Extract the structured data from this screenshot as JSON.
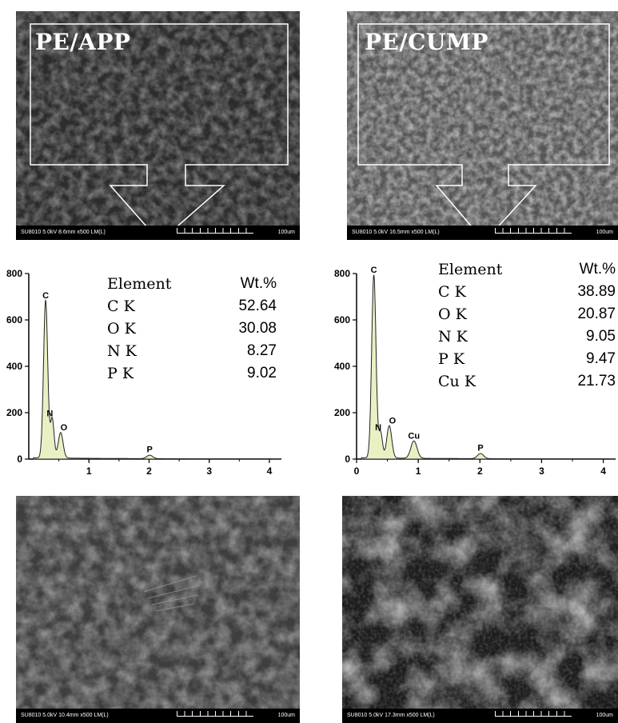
{
  "chart_data": [
    {
      "type": "line",
      "panel": "PE/APP",
      "x_ticks": [
        "1",
        "2",
        "3",
        "4"
      ],
      "y_ticks": [
        "0",
        "200",
        "400",
        "600",
        "800"
      ],
      "xlim": [
        0,
        4.2
      ],
      "ylim": [
        0,
        800
      ],
      "peaks": [
        {
          "label": "C",
          "x": 0.28,
          "y": 680
        },
        {
          "label": "N",
          "x": 0.39,
          "y": 170
        },
        {
          "label": "O",
          "x": 0.53,
          "y": 110
        },
        {
          "label": "P",
          "x": 2.01,
          "y": 15
        }
      ],
      "table": {
        "header": [
          "Element",
          "Wt.%"
        ],
        "rows": [
          [
            "C K",
            "52.64"
          ],
          [
            "O K",
            "30.08"
          ],
          [
            "N K",
            "8.27"
          ],
          [
            "P K",
            "9.02"
          ]
        ]
      }
    },
    {
      "type": "line",
      "panel": "PE/CUMP",
      "x_ticks": [
        "0",
        "1",
        "2",
        "3",
        "4"
      ],
      "y_ticks": [
        "0",
        "200",
        "400",
        "600",
        "800"
      ],
      "xlim": [
        0,
        4.2
      ],
      "ylim": [
        0,
        800
      ],
      "peaks": [
        {
          "label": "C",
          "x": 0.28,
          "y": 790
        },
        {
          "label": "N",
          "x": 0.39,
          "y": 110
        },
        {
          "label": "O",
          "x": 0.53,
          "y": 140
        },
        {
          "label": "Cu",
          "x": 0.93,
          "y": 75
        },
        {
          "label": "P",
          "x": 2.01,
          "y": 22
        }
      ],
      "table": {
        "header": [
          "Element",
          "Wt.%"
        ],
        "rows": [
          [
            "C K",
            "38.89"
          ],
          [
            "O K",
            "20.87"
          ],
          [
            "N K",
            "9.05"
          ],
          [
            "P K",
            "9.47"
          ],
          [
            "Cu K",
            "21.73"
          ]
        ]
      }
    }
  ],
  "sem_images": [
    {
      "label": "PE/APP",
      "caption": "SU8010 5.0kV 8.6mm x500 LM(L)",
      "scale": "100um"
    },
    {
      "label": "PE/CUMP",
      "caption": "SU8010 5.0kV 16.5mm x500 LM(L)",
      "scale": "100um"
    },
    {
      "caption": "SU8010 5.0kV 10.4mm x500 LM(L)",
      "scale": "100um"
    },
    {
      "caption": "SU8010 5.0kV 17.3mm x500 LM(L)",
      "scale": "100um"
    }
  ],
  "colors": {
    "peak_fill": "#e9f0c4",
    "sem_dark": "#3a3a3a",
    "sem_light": "#8a8a8a"
  }
}
